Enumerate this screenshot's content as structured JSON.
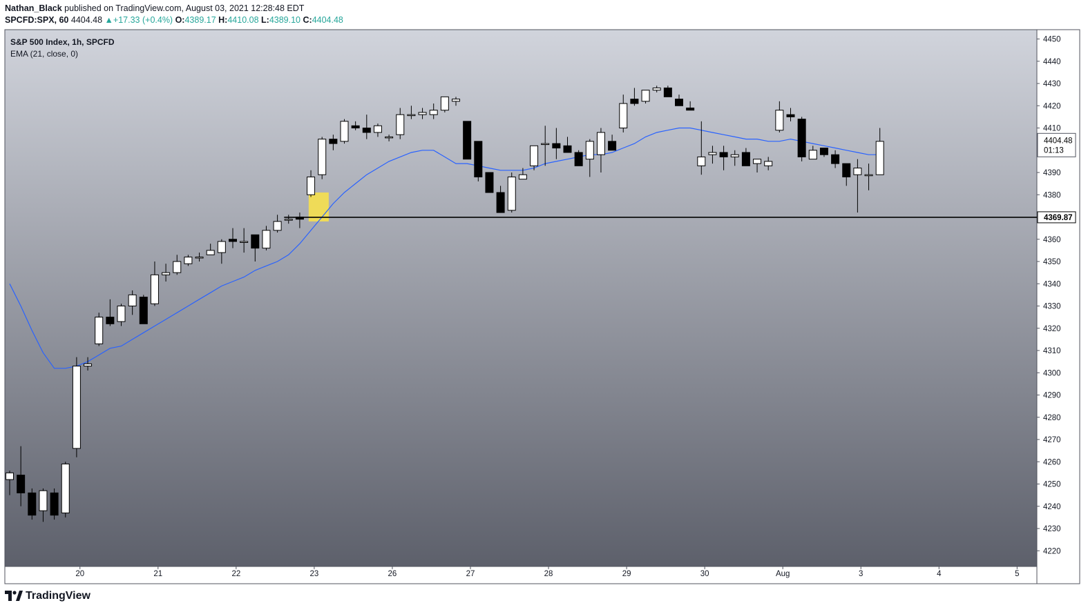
{
  "header": {
    "author": "Nathan_Black",
    "published_text": "published on TradingView.com, August 03, 2021 12:28:48 EDT",
    "symbol": "SPCFD:SPX, 60",
    "last": "4404.48",
    "change_arrow": "▲",
    "change": "+17.33 (+0.4%)",
    "o_label": "O:",
    "o_value": "4389.17",
    "h_label": "H:",
    "h_value": "4410.08",
    "l_label": "L:",
    "l_value": "4389.10",
    "c_label": "C:",
    "c_value": "4404.48"
  },
  "legend": {
    "title": "S&P 500 Index, 1h, SPCFD",
    "indicator": "EMA (21, close, 0)"
  },
  "brand": {
    "name": "TradingView",
    "icon": "tradingview-logo-icon"
  },
  "colors": {
    "bg_top": "#d1d4dc",
    "bg_bottom": "#5d606b",
    "candle_up": "#ffffff",
    "candle_down": "#000000",
    "ema": "#2962ff",
    "horizontal_line": "#000000",
    "highlight": "#f6e04e",
    "axis_text": "#131722"
  },
  "chart_data": {
    "type": "candlestick",
    "title": "S&P 500 Index, 1h, SPCFD",
    "ylim": [
      4215,
      4452
    ],
    "y_ticks": [
      4220,
      4230,
      4240,
      4250,
      4260,
      4270,
      4280,
      4290,
      4300,
      4310,
      4320,
      4330,
      4340,
      4350,
      4360,
      4370,
      4380,
      4390,
      4400,
      4410,
      4420,
      4430,
      4440,
      4450
    ],
    "x_ticks": [
      {
        "label": "20",
        "index": 6.3
      },
      {
        "label": "21",
        "index": 13.3
      },
      {
        "label": "22",
        "index": 20.3
      },
      {
        "label": "23",
        "index": 27.3
      },
      {
        "label": "26",
        "index": 34.3
      },
      {
        "label": "27",
        "index": 41.3
      },
      {
        "label": "28",
        "index": 48.3
      },
      {
        "label": "29",
        "index": 55.3
      },
      {
        "label": "30",
        "index": 62.3
      },
      {
        "label": "Aug",
        "index": 69.3
      },
      {
        "label": "3",
        "index": 76.3
      },
      {
        "label": "4",
        "index": 83.3
      },
      {
        "label": "5",
        "index": 90.3
      }
    ],
    "candles": [
      [
        4252,
        4256,
        4245,
        4255
      ],
      [
        4254,
        4267,
        4240,
        4246
      ],
      [
        4246,
        4248,
        4234,
        4236
      ],
      [
        4238,
        4248,
        4233,
        4247
      ],
      [
        4246,
        4248,
        4234,
        4236
      ],
      [
        4237,
        4260,
        4235,
        4259
      ],
      [
        4266,
        4307,
        4262,
        4303
      ],
      [
        4303,
        4307,
        4301,
        4304
      ],
      [
        4313,
        4327,
        4312,
        4325
      ],
      [
        4325,
        4333,
        4321,
        4322
      ],
      [
        4323,
        4331,
        4321,
        4330
      ],
      [
        4330,
        4337,
        4326,
        4335
      ],
      [
        4334,
        4335,
        4322,
        4322
      ],
      [
        4331,
        4350,
        4330,
        4344
      ],
      [
        4344,
        4349,
        4341,
        4345
      ],
      [
        4345,
        4353,
        4344,
        4350
      ],
      [
        4349,
        4353,
        4348,
        4352
      ],
      [
        4352,
        4354,
        4350,
        4352
      ],
      [
        4353,
        4358,
        4353,
        4355
      ],
      [
        4354,
        4360,
        4349,
        4359
      ],
      [
        4360,
        4365,
        4356,
        4359
      ],
      [
        4359,
        4365,
        4354,
        4359
      ],
      [
        4362,
        4361,
        4350,
        4356
      ],
      [
        4356,
        4366,
        4355,
        4364
      ],
      [
        4364,
        4371,
        4363,
        4368
      ],
      [
        4369,
        4371,
        4367,
        4369
      ],
      [
        4370,
        4372,
        4365,
        4369
      ],
      [
        4380,
        4391,
        4379,
        4388
      ],
      [
        4389,
        4406,
        4387,
        4405
      ],
      [
        4405,
        4407,
        4400,
        4403
      ],
      [
        4404,
        4414,
        4403,
        4413
      ],
      [
        4411,
        4413,
        4409,
        4410
      ],
      [
        4410,
        4416,
        4405,
        4408
      ],
      [
        4408,
        4412,
        4406,
        4411
      ],
      [
        4406,
        4407,
        4404,
        4406
      ],
      [
        4407,
        4419,
        4405,
        4416
      ],
      [
        4416,
        4420,
        4414,
        4416
      ],
      [
        4416,
        4419,
        4414,
        4417
      ],
      [
        4416,
        4421,
        4414,
        4418
      ],
      [
        4418,
        4424,
        4417,
        4424
      ],
      [
        4422,
        4424,
        4420,
        4423
      ],
      [
        4413,
        4413,
        4396,
        4396
      ],
      [
        4404,
        4404,
        4386,
        4388
      ],
      [
        4390,
        4390,
        4381,
        4381
      ],
      [
        4381,
        4384,
        4372,
        4372
      ],
      [
        4373,
        4390,
        4372,
        4388
      ],
      [
        4387,
        4392,
        4387,
        4389
      ],
      [
        4393,
        4401,
        4391,
        4402
      ],
      [
        4403,
        4411,
        4393,
        4403
      ],
      [
        4403,
        4410,
        4396,
        4401
      ],
      [
        4402,
        4406,
        4399,
        4399
      ],
      [
        4399,
        4400,
        4393,
        4393
      ],
      [
        4396,
        4405,
        4388,
        4404
      ],
      [
        4398,
        4410,
        4390,
        4408
      ],
      [
        4404,
        4407,
        4400,
        4400
      ],
      [
        4410,
        4425,
        4408,
        4421
      ],
      [
        4423,
        4428,
        4420,
        4421
      ],
      [
        4422,
        4427,
        4421,
        4427
      ],
      [
        4427,
        4429,
        4426,
        4428
      ],
      [
        4428,
        4429,
        4425,
        4424
      ],
      [
        4423,
        4425,
        4420,
        4420
      ],
      [
        4419,
        4422,
        4418,
        4418
      ],
      [
        4393,
        4413,
        4389,
        4397
      ],
      [
        4398,
        4402,
        4394,
        4399
      ],
      [
        4399,
        4402,
        4391,
        4397
      ],
      [
        4397,
        4400,
        4393,
        4398
      ],
      [
        4399,
        4401,
        4393,
        4393
      ],
      [
        4394,
        4396,
        4390,
        4396
      ],
      [
        4393,
        4397,
        4391,
        4395
      ],
      [
        4409,
        4422,
        4408,
        4418
      ],
      [
        4416,
        4419,
        4413,
        4415
      ],
      [
        4414,
        4415,
        4395,
        4397
      ],
      [
        4396,
        4402,
        4396,
        4400
      ],
      [
        4401,
        4401,
        4397,
        4398
      ],
      [
        4398,
        4400,
        4392,
        4394
      ],
      [
        4394,
        4394,
        4384,
        4388
      ],
      [
        4389,
        4396,
        4372,
        4392
      ],
      [
        4389,
        4394,
        4382,
        4389
      ],
      [
        4389,
        4410,
        4389,
        4404
      ]
    ],
    "ema": [
      4340,
      4330,
      4319,
      4309,
      4302,
      4302,
      4303,
      4305,
      4308,
      4311,
      4312,
      4315,
      4318,
      4321,
      4324,
      4327,
      4330,
      4333,
      4336,
      4339,
      4341,
      4343,
      4346,
      4348,
      4350,
      4353,
      4358,
      4364,
      4370,
      4376,
      4381,
      4385,
      4389,
      4392,
      4395,
      4397,
      4399,
      4400,
      4400,
      4397,
      4394,
      4394,
      4393,
      4392,
      4391,
      4391,
      4391,
      4392,
      4394,
      4395,
      4396,
      4397,
      4398,
      4398,
      4399,
      4401,
      4403,
      4406,
      4408,
      4409,
      4410,
      4410,
      4409,
      4408,
      4407,
      4406,
      4405,
      4405,
      4404,
      4404,
      4405,
      4404,
      4403,
      4402,
      4401,
      4400,
      4399,
      4398,
      4398
    ],
    "horizontal_line": {
      "value": 4369.87,
      "label": "4369.87"
    },
    "highlight_zone": {
      "index_from": 26.8,
      "index_to": 28.6,
      "y_from": 4368,
      "y_to": 4381
    },
    "last_price": {
      "value": 4404.48,
      "label": "4404.48",
      "countdown": "01:13"
    }
  }
}
